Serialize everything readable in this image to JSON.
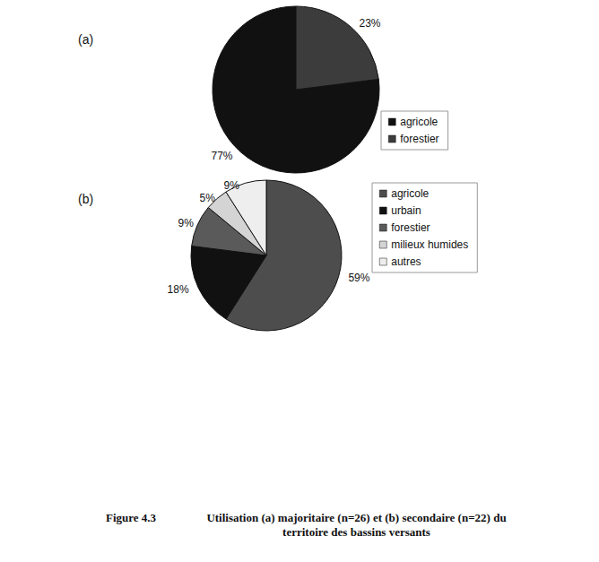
{
  "chart_data": [
    {
      "type": "pie",
      "title": "(a)",
      "categories": [
        "agricole",
        "forestier"
      ],
      "values": [
        77,
        23
      ],
      "value_labels": [
        "77%",
        "23%"
      ],
      "colors": [
        "#111111",
        "#3c3c3c"
      ],
      "legend": "right",
      "data_labels": true
    },
    {
      "type": "pie",
      "title": "(b)",
      "categories": [
        "agricole",
        "urbain",
        "forestier",
        "milieux humides",
        "autres"
      ],
      "values": [
        59,
        18,
        9,
        5,
        9
      ],
      "value_labels": [
        "59%",
        "18%",
        "9%",
        "5%",
        "9%"
      ],
      "colors": [
        "#4d4d4d",
        "#111111",
        "#5a5a5a",
        "#d4d4d4",
        "#eeeeee"
      ],
      "legend": "right",
      "data_labels": true
    }
  ],
  "caption": {
    "label": "Figure 4.3",
    "text": "Utilisation (a) majoritaire (n=26) et (b) secondaire (n=22) du territoire des bassins versants"
  }
}
